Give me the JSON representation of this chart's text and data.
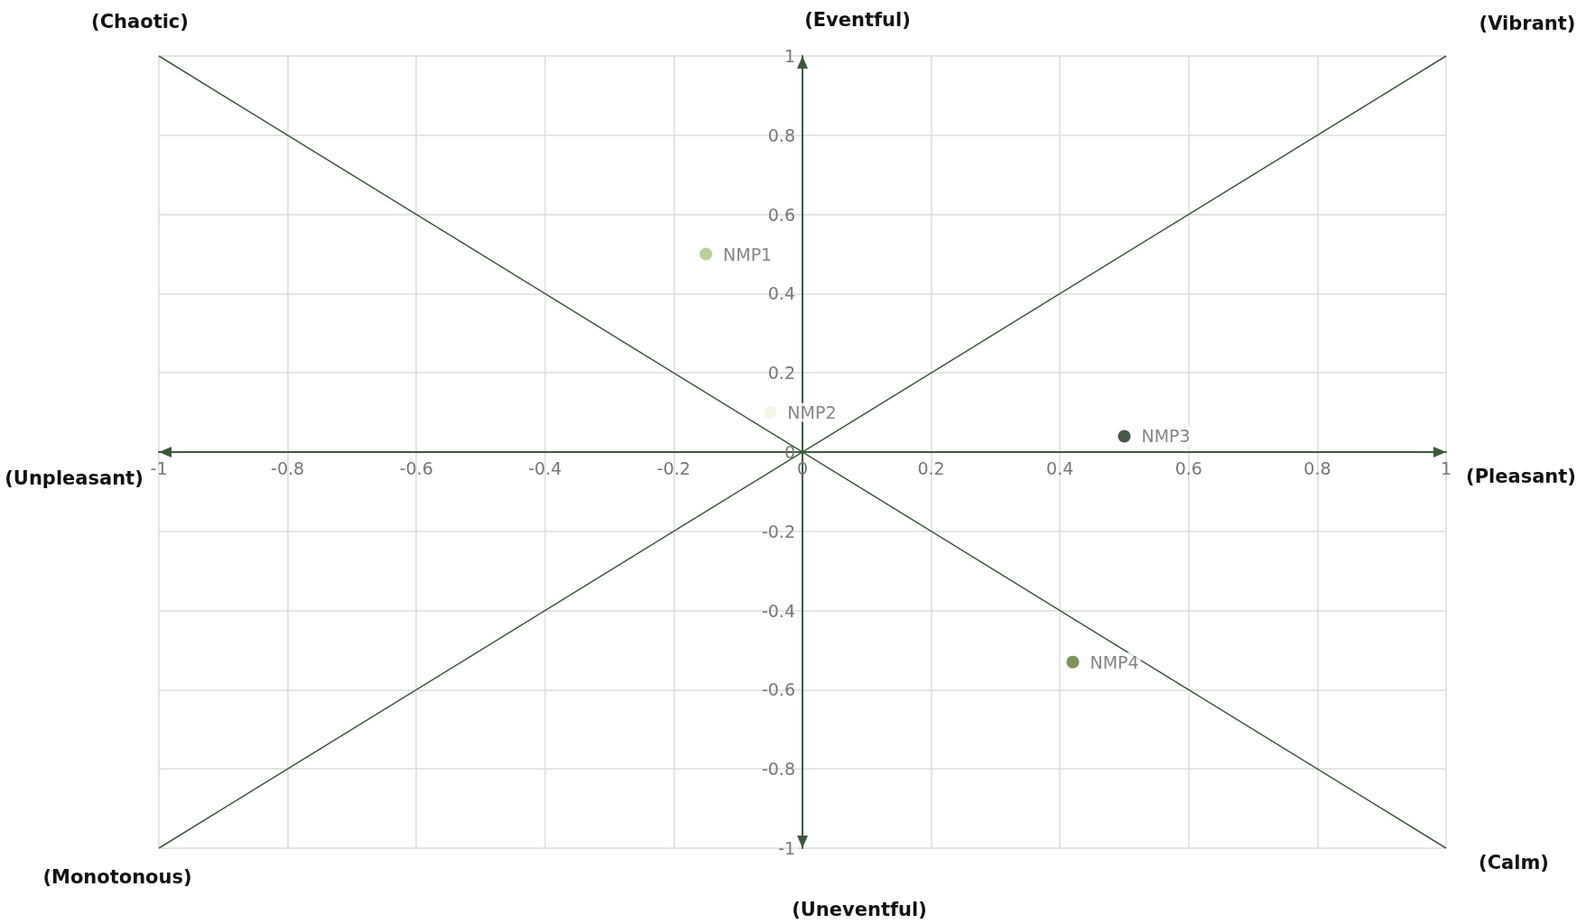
{
  "chart_data": {
    "type": "scatter",
    "xlim": [
      -1,
      1
    ],
    "ylim": [
      -1,
      1
    ],
    "xticks": [
      -1,
      -0.8,
      -0.6,
      -0.4,
      -0.2,
      0,
      0.2,
      0.4,
      0.6,
      0.8,
      1
    ],
    "yticks": [
      -1,
      -0.8,
      -0.6,
      -0.4,
      -0.2,
      0,
      0.2,
      0.4,
      0.6,
      0.8,
      1
    ],
    "grid": true,
    "marker": "circle",
    "legend": false,
    "annotations": [
      "(Chaotic)",
      "(Eventful)",
      "(Vibrant)",
      "(Unpleasant)",
      "(Pleasant)",
      "(Monotonous)",
      "(Uneventful)",
      "(Calm)"
    ],
    "series": [
      {
        "type": "line",
        "marker": "none",
        "color": "#3d5a3d",
        "x": [
          -1,
          1
        ],
        "values": [
          1,
          -1
        ]
      },
      {
        "type": "line",
        "marker": "none",
        "color": "#3d5a3d",
        "x": [
          -1,
          1
        ],
        "values": [
          -1,
          1
        ]
      },
      {
        "name": "NMP1",
        "color": "#a9c47f",
        "x": [
          -0.15
        ],
        "values": [
          0.5
        ]
      },
      {
        "name": "NMP2",
        "color": "#eef5e0",
        "x": [
          -0.05
        ],
        "values": [
          0.1
        ]
      },
      {
        "name": "NMP3",
        "color": "#1f2d1f",
        "x": [
          0.5
        ],
        "values": [
          0.04
        ]
      },
      {
        "name": "NMP4",
        "color": "#5c7a34",
        "x": [
          0.42
        ],
        "values": [
          -0.53
        ]
      }
    ]
  }
}
